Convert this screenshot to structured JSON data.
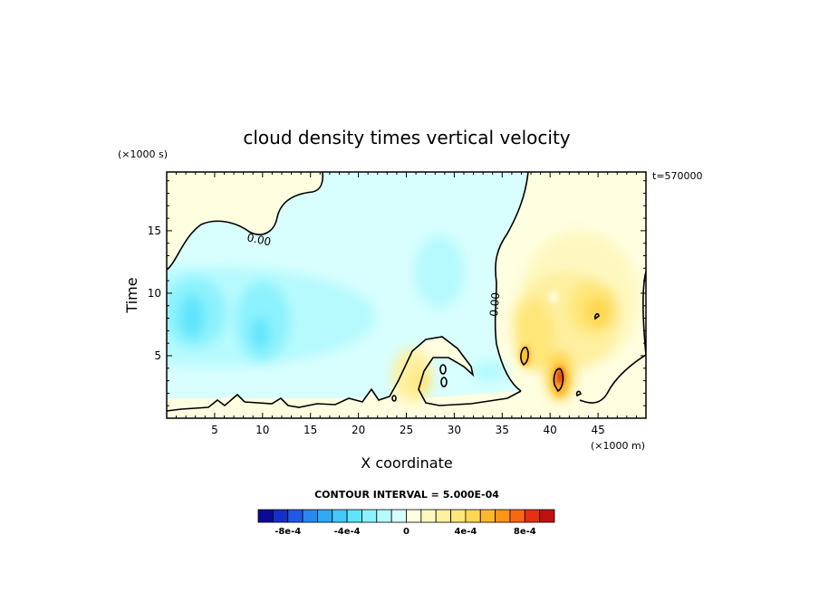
{
  "chart_data": {
    "type": "heatmap",
    "title": "cloud density times vertical velocity",
    "xlabel": "X coordinate",
    "ylabel": "Time",
    "x_unit": "(×1000 m)",
    "y_unit": "(×1000 s)",
    "time_label": "t=570000",
    "contour_interval_text": "CONTOUR INTERVAL = 5.000E-04",
    "contour_label": "0.00",
    "xlim": [
      0,
      50
    ],
    "ylim": [
      0,
      19.7
    ],
    "x_ticks": [
      5,
      10,
      15,
      20,
      25,
      30,
      35,
      40,
      45
    ],
    "y_ticks": [
      5,
      10,
      15
    ],
    "colorbar": {
      "levels": [
        -0.001,
        -0.0009,
        -0.0008,
        -0.0007,
        -0.0006,
        -0.0005,
        -0.0004,
        -0.0003,
        -0.0002,
        -0.0001,
        0,
        0.0001,
        0.0002,
        0.0003,
        0.0004,
        0.0005,
        0.0006,
        0.0007,
        0.0008,
        0.0009,
        0.001
      ],
      "colors": [
        "#0a0a96",
        "#1430c8",
        "#1e5ae6",
        "#2888f0",
        "#30aaf5",
        "#45c8fa",
        "#5ee4fc",
        "#8cf2fd",
        "#b6fafe",
        "#d8fefe",
        "#fefee0",
        "#fef8c0",
        "#fef0a0",
        "#fee678",
        "#fed650",
        "#feb830",
        "#fe9418",
        "#f86810",
        "#e83010",
        "#c01010"
      ],
      "tick_labels": [
        "-8e-4",
        "-4e-4",
        "0",
        "4e-4",
        "8e-4"
      ],
      "tick_values": [
        -0.0008,
        -0.0004,
        0,
        0.0004,
        0.0008
      ]
    },
    "features": [
      {
        "x": 2.5,
        "y": 8.5,
        "value": -0.0004
      },
      {
        "x": 9.5,
        "y": 7.0,
        "value": -0.0004
      },
      {
        "x": 30.0,
        "y": 11.5,
        "value": -0.00015
      },
      {
        "x": 40.5,
        "y": 3.5,
        "value": 0.0009
      },
      {
        "x": 37.0,
        "y": 5.5,
        "value": 0.0006
      },
      {
        "x": 43.5,
        "y": 9.5,
        "value": 0.0005
      },
      {
        "x": 26.0,
        "y": 3.0,
        "value": 0.0003
      }
    ]
  }
}
